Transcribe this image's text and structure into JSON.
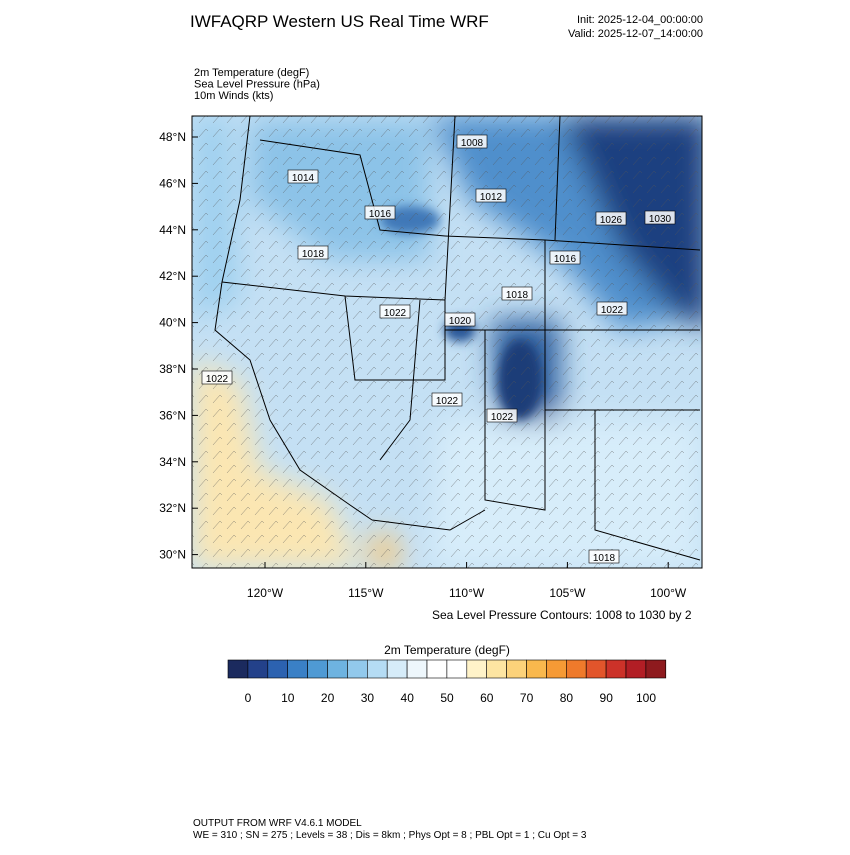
{
  "header": {
    "title": "IWFAQRP Western US Real Time WRF",
    "init": "Init: 2025-12-04_00:00:00",
    "valid": "Valid: 2025-12-07_14:00:00"
  },
  "fields": [
    "2m Temperature   (degF)",
    "Sea Level Pressure   (hPa)",
    "10m Winds   (kts)"
  ],
  "map": {
    "lat_labels": [
      "48°N",
      "46°N",
      "44°N",
      "42°N",
      "40°N",
      "38°N",
      "36°N",
      "34°N",
      "32°N",
      "30°N"
    ],
    "lon_labels": [
      "120°W",
      "115°W",
      "110°W",
      "105°W",
      "100°W"
    ],
    "contour_labels": [
      "1008",
      "1014",
      "1012",
      "1016",
      "1018",
      "1026",
      "1030",
      "1016",
      "1018",
      "1022",
      "1020",
      "1022",
      "1022",
      "1022",
      "1022",
      "1018"
    ],
    "contour_note": "Sea Level Pressure Contours: 1008 to 1030 by 2"
  },
  "colorbar": {
    "title": "2m Temperature  (degF)",
    "ticks": [
      0,
      10,
      20,
      30,
      40,
      50,
      60,
      70,
      80,
      90,
      100
    ],
    "colors": [
      "#1b2a5e",
      "#23418a",
      "#2c62b0",
      "#3a80c6",
      "#4f9ad4",
      "#6eb3e0",
      "#92c9ec",
      "#b5dcf4",
      "#d6ecf9",
      "#eef7fc",
      "#ffffff",
      "#ffffff",
      "#fff3c9",
      "#fde5a2",
      "#fcd27a",
      "#f9b84d",
      "#f69a35",
      "#ef7a2b",
      "#e2552b",
      "#cc3229",
      "#b21e25",
      "#8e1a1e"
    ]
  },
  "footer": {
    "line1": "OUTPUT FROM WRF V4.6.1 MODEL",
    "line2": "WE = 310 ; SN = 275 ; Levels = 38 ; Dis = 8km ; Phys Opt = 8 ; PBL Opt = 1 ; Cu Opt = 3"
  }
}
